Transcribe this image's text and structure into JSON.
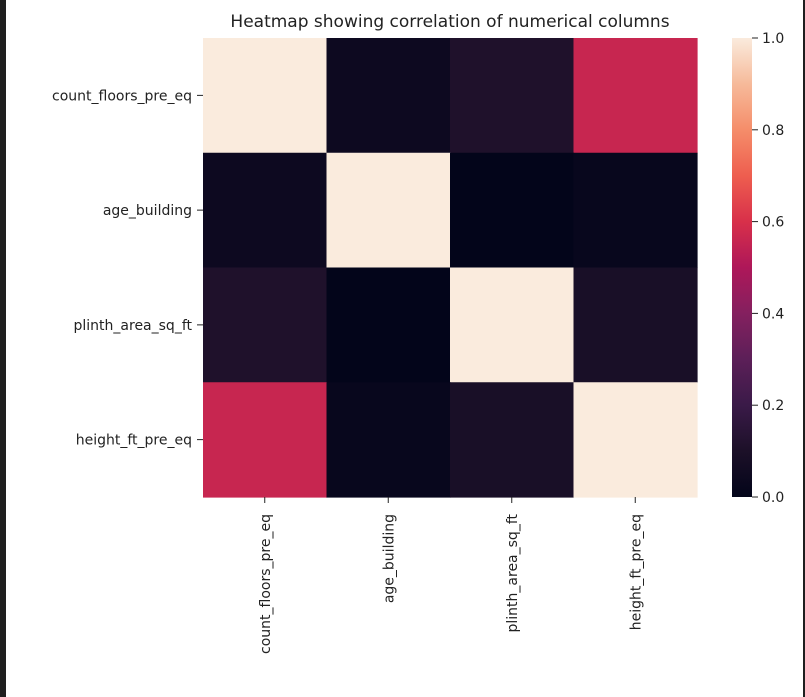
{
  "chart_data": {
    "type": "heatmap",
    "title": "Heatmap showing correlation of numerical columns",
    "rows": [
      "count_floors_pre_eq",
      "age_building",
      "plinth_area_sq_ft",
      "height_ft_pre_eq"
    ],
    "columns": [
      "count_floors_pre_eq",
      "age_building",
      "plinth_area_sq_ft",
      "height_ft_pre_eq"
    ],
    "values": [
      [
        1.0,
        0.04,
        0.11,
        0.56
      ],
      [
        0.04,
        1.0,
        0.0,
        0.02
      ],
      [
        0.11,
        0.0,
        1.0,
        0.09
      ],
      [
        0.56,
        0.02,
        0.09,
        1.0
      ]
    ],
    "colorbar": {
      "range": [
        0.0,
        1.0
      ],
      "ticks": [
        "0.0",
        "0.2",
        "0.4",
        "0.6",
        "0.8",
        "1.0"
      ],
      "colormap": "rocket"
    },
    "grid": false,
    "legend": "right (colorbar)"
  }
}
